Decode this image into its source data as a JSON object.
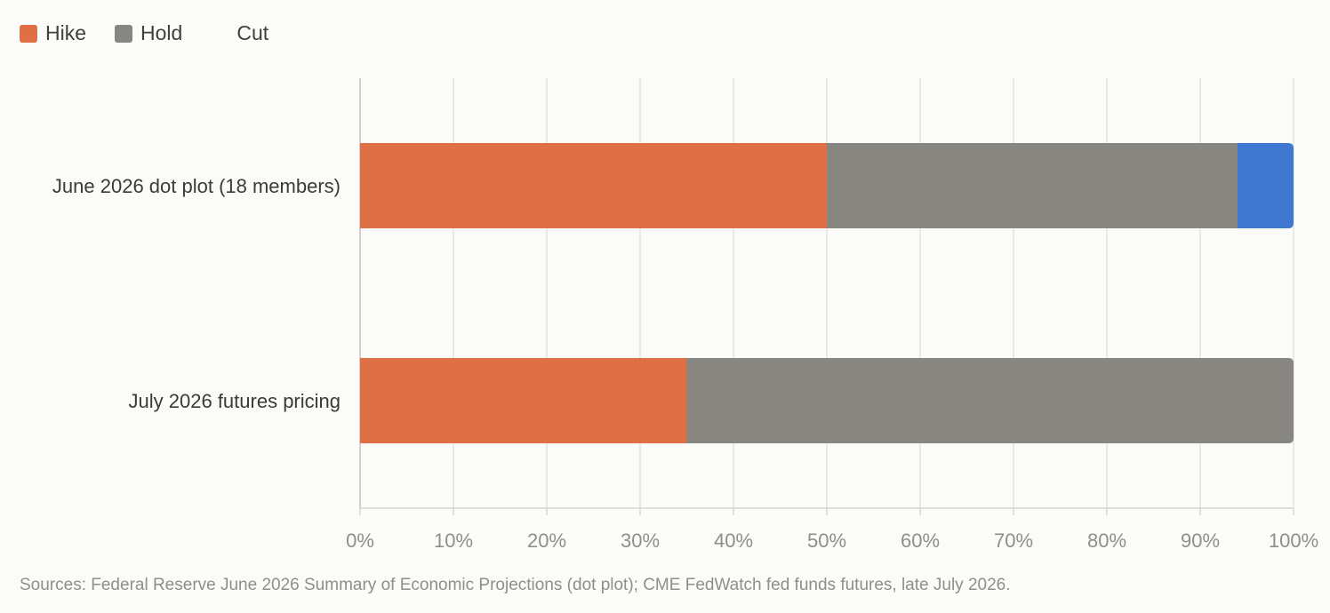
{
  "legend": {
    "items": [
      {
        "label": "Hike",
        "color": "#df6f45",
        "swatch": true
      },
      {
        "label": "Hold",
        "color": "#878680",
        "swatch": true
      },
      {
        "label": "Cut",
        "color": "#3e78d1",
        "swatch": false
      }
    ]
  },
  "footer": {
    "source": "Sources: Federal Reserve June 2026 Summary of Economic Projections (dot plot); CME FedWatch fed funds futures, late July 2026."
  },
  "chart_data": {
    "type": "bar",
    "orientation": "horizontal",
    "stacked": true,
    "categories": [
      "June 2026 dot plot (18 members)",
      "July 2026 futures pricing"
    ],
    "series": [
      {
        "name": "Hike",
        "color": "#df6f45",
        "values": [
          50,
          35
        ]
      },
      {
        "name": "Hold",
        "color": "#878680",
        "values": [
          44,
          65
        ]
      },
      {
        "name": "Cut",
        "color": "#3e78d1",
        "values": [
          6,
          0
        ]
      }
    ],
    "xlim": [
      0,
      100
    ],
    "xticks": [
      "0%",
      "10%",
      "20%",
      "30%",
      "40%",
      "50%",
      "60%",
      "70%",
      "80%",
      "90%",
      "100%"
    ],
    "grid": true,
    "legend_position": "top-left"
  }
}
